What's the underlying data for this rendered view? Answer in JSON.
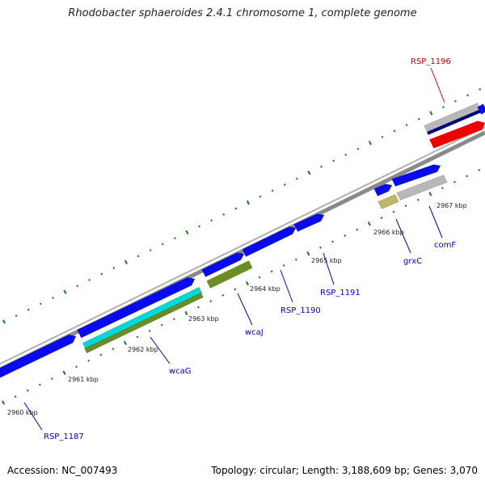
{
  "title": "Rhodobacter sphaeroides 2.4.1 chromosome 1, complete genome",
  "accession": "Accession: NC_007493",
  "summary": "Topology: circular; Length: 3,188,609 bp; Genes: 3,070",
  "colors": {
    "forward_gene": "#0a0aee",
    "reverse_gene_navy": "#000080",
    "highlight_gene": "#ee0000",
    "backbone": "#888888",
    "tick": "#1a7a1a",
    "label_blue": "#0000cc",
    "label_red": "#cc0000",
    "cyan_feature": "#00d8d8",
    "olive_feature": "#6b8e23",
    "khaki_feature": "#bdb76b",
    "grey_feature": "#b8b8b8"
  },
  "tick_labels": [
    "2960 kbp",
    "2961 kbp",
    "2962 kbp",
    "2963 kbp",
    "2964 kbp",
    "2965 kbp",
    "2966 kbp",
    "2967 kbp"
  ],
  "gene_labels": [
    {
      "text": "RSP_1196",
      "color_key": "label_red"
    },
    {
      "text": "grxC",
      "color_key": "label_blue"
    },
    {
      "text": "comF",
      "color_key": "label_blue"
    },
    {
      "text": "RSP_1191",
      "color_key": "label_blue"
    },
    {
      "text": "RSP_1190",
      "color_key": "label_blue"
    },
    {
      "text": "wcaJ",
      "color_key": "label_blue"
    },
    {
      "text": "wcaG",
      "color_key": "label_blue"
    },
    {
      "text": "RSP_1187",
      "color_key": "label_blue"
    }
  ]
}
